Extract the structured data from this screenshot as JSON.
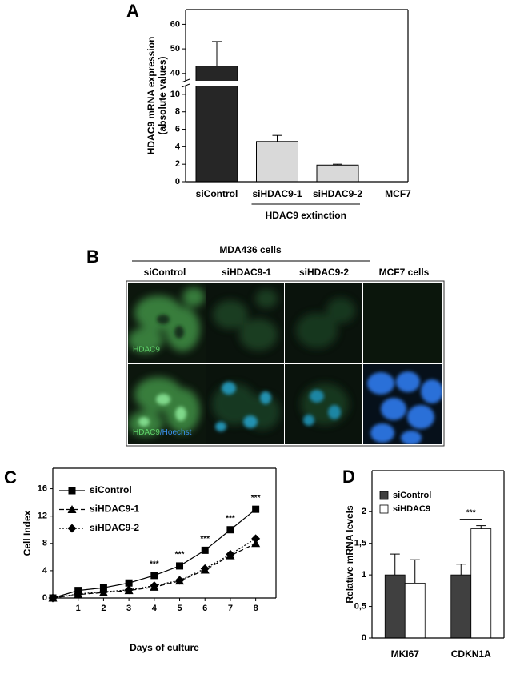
{
  "chart_data": [
    {
      "type": "bar",
      "panel": "A",
      "categories": [
        "siControl",
        "siHDAC9-1",
        "siHDAC9-2",
        "MCF7"
      ],
      "values": [
        43,
        4.6,
        1.9,
        0
      ],
      "errors": [
        10,
        0.7,
        0.1,
        0
      ],
      "colors": [
        "#262626",
        "#d9d9d9",
        "#d9d9d9",
        "#d9d9d9"
      ],
      "ylabel": [
        "HDAC9 mRNA expression",
        "(absolute values)"
      ],
      "ylim": [
        0,
        66
      ],
      "ybreak": [
        11,
        37
      ],
      "yticks": [
        0,
        2,
        4,
        6,
        8,
        10,
        40,
        50,
        60
      ],
      "group": [
        "siHDAC9-1",
        "siHDAC9-2"
      ],
      "group_label": "HDAC9 extinction"
    },
    {
      "type": "line",
      "panel": "C",
      "x": [
        0,
        1,
        2,
        3,
        4,
        5,
        6,
        7,
        8
      ],
      "series": [
        {
          "name": "siControl",
          "color": "#000000",
          "marker": "square",
          "dash": "solid",
          "values": [
            0,
            1.1,
            1.5,
            2.2,
            3.3,
            4.7,
            7.0,
            10.0,
            13.0
          ]
        },
        {
          "name": "siHDAC9-1",
          "color": "#000000",
          "marker": "triangle",
          "dash": "dashed",
          "values": [
            0,
            0.5,
            0.8,
            1.1,
            1.6,
            2.5,
            4.1,
            6.2,
            8.0
          ]
        },
        {
          "name": "siHDAC9-2",
          "color": "#000000",
          "marker": "diamond",
          "dash": "dotted",
          "values": [
            0,
            0.6,
            0.9,
            1.2,
            1.8,
            2.6,
            4.3,
            6.4,
            8.7
          ]
        }
      ],
      "xlim": [
        0,
        8.8
      ],
      "xticks": [
        1,
        2,
        3,
        4,
        5,
        6,
        7,
        8
      ],
      "ylim": [
        0,
        19
      ],
      "yticks": [
        0,
        4,
        8,
        12,
        16
      ],
      "xlabel": "Days of culture",
      "ylabel": "Cell Index",
      "legend": "top-left",
      "annotations": [
        {
          "x": 4,
          "text": "***"
        },
        {
          "x": 5,
          "text": "***"
        },
        {
          "x": 6,
          "text": "***"
        },
        {
          "x": 7,
          "text": "***"
        },
        {
          "x": 8,
          "text": "***"
        }
      ]
    },
    {
      "type": "bar",
      "panel": "D",
      "categories": [
        "MKI67",
        "CDKN1A"
      ],
      "series": [
        {
          "name": "siControl",
          "color": "#404040",
          "values": [
            1,
            1
          ],
          "errors": [
            0.33,
            0.17
          ]
        },
        {
          "name": "siHDAC9",
          "color": "#ffffff",
          "values": [
            0.87,
            1.73
          ],
          "errors": [
            0.37,
            0.05
          ]
        }
      ],
      "ylim": [
        0,
        2.65
      ],
      "yticks": [
        0,
        {
          "value": 0.5,
          "label": "0,5"
        },
        1,
        {
          "value": 1.5,
          "label": "1,5"
        },
        2
      ],
      "ylabel": [
        "Relative mRNA levels"
      ],
      "legend": "top-left",
      "annotations": [
        {
          "category": "CDKN1A",
          "text": "***"
        }
      ]
    }
  ],
  "panel_b": {
    "panel": "B",
    "title": "MDA436 cells",
    "columns": [
      "siControl",
      "siHDAC9-1",
      "siHDAC9-2",
      "MCF7 cells"
    ],
    "row_labels": [
      [
        "HDAC9"
      ],
      [
        "HDAC9",
        "/Hoechst"
      ]
    ]
  }
}
